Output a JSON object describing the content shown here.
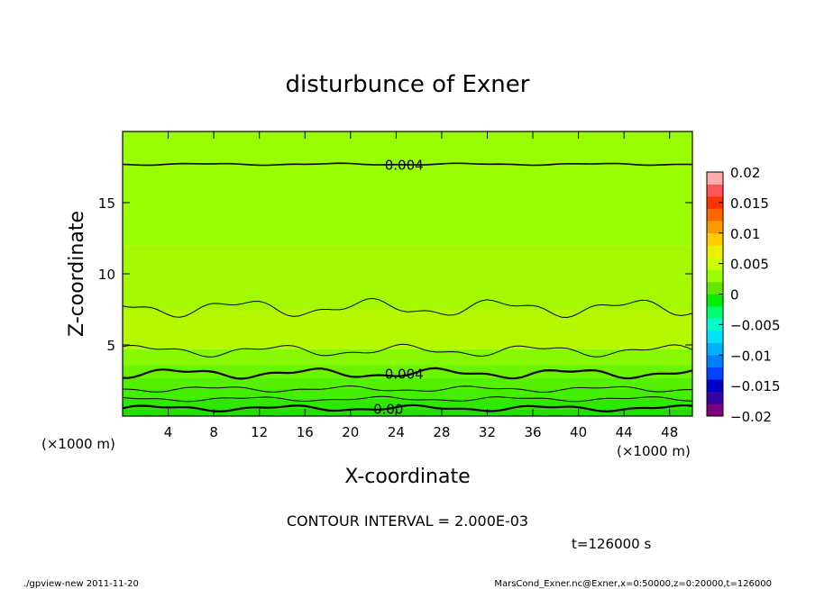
{
  "chart_data": {
    "type": "heatmap",
    "title": "disturbunce of Exner",
    "xlabel": "X-coordinate",
    "ylabel": "Z-coordinate",
    "x_unit": "(×1000 m)",
    "y_unit": "(×1000 m)",
    "xlim": [
      0,
      50
    ],
    "ylim": [
      0,
      20
    ],
    "x_ticks": [
      4,
      8,
      12,
      16,
      20,
      24,
      28,
      32,
      36,
      40,
      44,
      48
    ],
    "y_ticks": [
      5,
      10,
      15
    ],
    "contour_interval_text": "CONTOUR INTERVAL = 2.000E-03",
    "time_text": "t=126000 s",
    "colorbar": {
      "ticks": [
        "0.02",
        "0.015",
        "0.01",
        "0.005",
        "0",
        "−0.005",
        "−0.01",
        "−0.015",
        "−0.02"
      ],
      "range": [
        -0.02,
        0.02
      ],
      "colors": [
        "#800080",
        "#3a00a0",
        "#0000cc",
        "#0040ff",
        "#0080ff",
        "#00b0ff",
        "#00e0ff",
        "#00ffcc",
        "#00ff70",
        "#00ee00",
        "#60e800",
        "#99ff00",
        "#ccff00",
        "#eeee00",
        "#ffcc00",
        "#ff9900",
        "#ff6600",
        "#ff3300",
        "#ff5555",
        "#ffaaaa"
      ]
    },
    "bands": [
      {
        "z_bottom": 0.0,
        "z_top": 0.5,
        "color": "#22dd00"
      },
      {
        "z_bottom": 0.5,
        "z_top": 1.2,
        "color": "#2ee800"
      },
      {
        "z_bottom": 1.2,
        "z_top": 1.9,
        "color": "#44ee00"
      },
      {
        "z_bottom": 1.9,
        "z_top": 2.7,
        "color": "#55f000"
      },
      {
        "z_bottom": 2.7,
        "z_top": 3.6,
        "color": "#6af400"
      },
      {
        "z_bottom": 3.6,
        "z_top": 4.7,
        "color": "#88f800"
      },
      {
        "z_bottom": 4.7,
        "z_top": 7.5,
        "color": "#b6f800"
      },
      {
        "z_bottom": 7.5,
        "z_top": 12.0,
        "color": "#a4f800"
      },
      {
        "z_bottom": 12.0,
        "z_top": 20.0,
        "color": "#99ff00"
      }
    ],
    "contours": [
      {
        "z": 0.55,
        "amp": 0.15,
        "width": 2.2
      },
      {
        "z": 1.2,
        "amp": 0.12,
        "width": 1.0
      },
      {
        "z": 1.9,
        "amp": 0.15,
        "width": 1.0
      },
      {
        "z": 3.0,
        "amp": 0.25,
        "width": 2.2
      },
      {
        "z": 4.6,
        "amp": 0.3,
        "width": 1.0
      },
      {
        "z": 7.6,
        "amp": 0.45,
        "width": 1.0
      },
      {
        "z": 17.7,
        "amp": 0.05,
        "width": 1.6
      }
    ],
    "contour_labels": [
      {
        "text": "0.004",
        "x": 23,
        "z": 17.7
      },
      {
        "text": "0.004",
        "x": 23,
        "z": 3.0
      },
      {
        "text": "0.00",
        "x": 22,
        "z": 0.55
      }
    ]
  },
  "footer": {
    "left": "./gpview-new   2011-11-20",
    "right": "MarsCond_Exner.nc@Exner,x=0:50000,z=0:20000,t=126000"
  }
}
